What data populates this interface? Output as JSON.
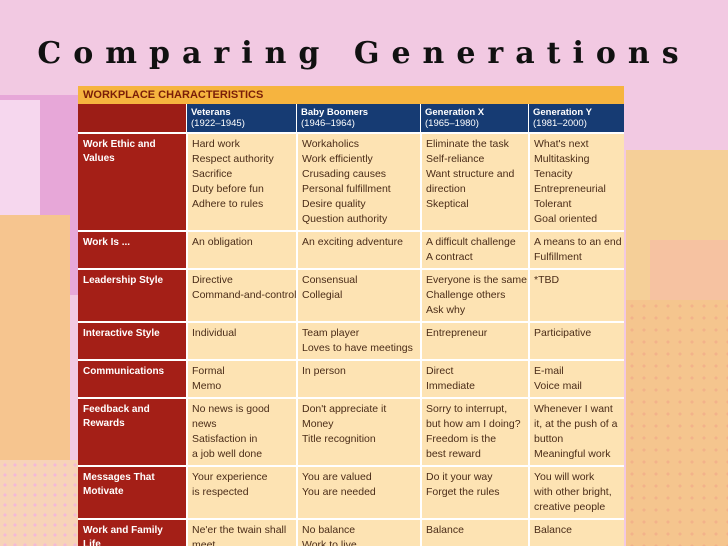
{
  "title": "Comparing Generations",
  "table": {
    "title": "WORKPLACE CHARACTERISTICS",
    "columns": [
      {
        "name": "Veterans",
        "years": "(1922–1945)"
      },
      {
        "name": "Baby Boomers",
        "years": "(1946–1964)"
      },
      {
        "name": "Generation X",
        "years": "(1965–1980)"
      },
      {
        "name": "Generation Y",
        "years": "(1981–2000)"
      }
    ],
    "rows": [
      {
        "label": [
          "Work Ethic and",
          "Values"
        ],
        "cells": [
          [
            "Hard work",
            "Respect authority",
            "Sacrifice",
            "Duty before fun",
            "Adhere to rules"
          ],
          [
            "Workaholics",
            "Work efficiently",
            "Crusading causes",
            "Personal fulfillment",
            "Desire quality",
            "Question authority"
          ],
          [
            "Eliminate the task",
            "Self-reliance",
            "Want structure and",
            "direction",
            "Skeptical"
          ],
          [
            "What's next",
            "Multitasking",
            "Tenacity",
            "Entrepreneurial",
            "Tolerant",
            "Goal oriented"
          ]
        ]
      },
      {
        "label": [
          "Work Is ..."
        ],
        "cells": [
          [
            "An obligation"
          ],
          [
            "An exciting adventure"
          ],
          [
            "A difficult challenge",
            "A contract"
          ],
          [
            "A means to an end",
            "Fulfillment"
          ]
        ]
      },
      {
        "label": [
          "Leadership Style"
        ],
        "cells": [
          [
            "Directive",
            "Command-and-control"
          ],
          [
            "Consensual",
            "Collegial"
          ],
          [
            "Everyone is the same",
            "Challenge others",
            "Ask why"
          ],
          [
            "*TBD"
          ]
        ]
      },
      {
        "label": [
          "Interactive Style"
        ],
        "cells": [
          [
            "Individual"
          ],
          [
            "Team player",
            "Loves to have meetings"
          ],
          [
            "Entrepreneur"
          ],
          [
            "Participative"
          ]
        ]
      },
      {
        "label": [
          "Communications"
        ],
        "cells": [
          [
            "Formal",
            "Memo"
          ],
          [
            "In person"
          ],
          [
            "Direct",
            "Immediate"
          ],
          [
            "E-mail",
            "Voice mail"
          ]
        ]
      },
      {
        "label": [
          "Feedback and",
          "Rewards"
        ],
        "cells": [
          [
            "No news is good",
            "news",
            "Satisfaction in",
            "a job well done"
          ],
          [
            "Don't appreciate it",
            "Money",
            "Title recognition"
          ],
          [
            "Sorry to interrupt,",
            "but how am I doing?",
            "Freedom is the",
            "best reward"
          ],
          [
            "Whenever I want",
            "it, at the push of a",
            "button",
            "Meaningful work"
          ]
        ]
      },
      {
        "label": [
          "Messages That",
          "Motivate"
        ],
        "cells": [
          [
            "Your experience",
            "is respected"
          ],
          [
            "You are valued",
            "You are needed"
          ],
          [
            "Do it your way",
            "Forget the rules"
          ],
          [
            "You will work",
            "with other bright,",
            "creative people"
          ]
        ]
      },
      {
        "label": [
          "Work and Family",
          "Life"
        ],
        "cells": [
          [
            "Ne'er the twain shall",
            "meet"
          ],
          [
            "No balance",
            "Work to live"
          ],
          [
            "Balance"
          ],
          [
            "Balance"
          ]
        ]
      }
    ]
  }
}
